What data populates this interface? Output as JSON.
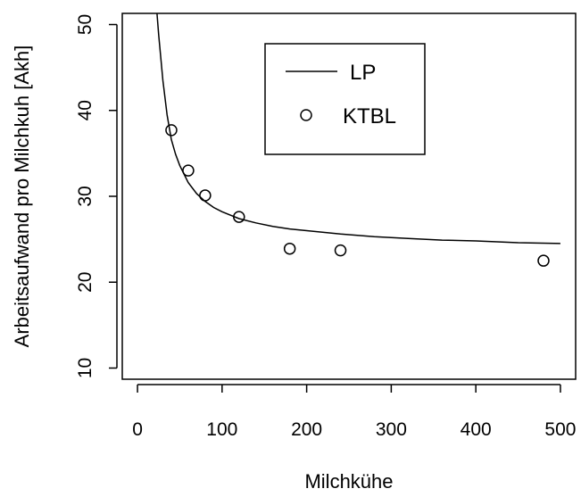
{
  "chart_data": {
    "type": "scatter",
    "xlabel": "Milchkühe",
    "ylabel": "Arbeitsaufwand pro Milchkuh [Akh]",
    "xlim": [
      -18,
      518
    ],
    "ylim": [
      8.7,
      51.3
    ],
    "x_ticks": [
      0,
      100,
      200,
      300,
      400,
      500
    ],
    "y_ticks": [
      10,
      20,
      30,
      40,
      50
    ],
    "x_tick_labels": [
      "0",
      "100",
      "200",
      "300",
      "400",
      "500"
    ],
    "y_tick_labels": [
      "10",
      "20",
      "30",
      "40",
      "50"
    ],
    "grid": false,
    "legend": {
      "position": "top-center",
      "entries": [
        {
          "label": "LP",
          "symbol": "line"
        },
        {
          "label": "KTBL",
          "symbol": "open-circle"
        }
      ]
    },
    "series": [
      {
        "name": "LP",
        "style": "line",
        "color": "#000000",
        "x": [
          23,
          25,
          30,
          35,
          40,
          45,
          50,
          60,
          70,
          80,
          90,
          100,
          120,
          140,
          160,
          180,
          200,
          240,
          280,
          320,
          360,
          400,
          450,
          500
        ],
        "y": [
          51.3,
          48.8,
          43.5,
          39.5,
          36.6,
          34.9,
          33.6,
          31.6,
          30.3,
          29.4,
          28.7,
          28.2,
          27.4,
          26.9,
          26.5,
          26.2,
          26.0,
          25.6,
          25.3,
          25.1,
          24.9,
          24.8,
          24.6,
          24.5
        ]
      },
      {
        "name": "KTBL",
        "style": "open-circle",
        "color": "#000000",
        "x": [
          40,
          60,
          80,
          120,
          180,
          240,
          480
        ],
        "y": [
          37.7,
          33.0,
          30.1,
          27.6,
          23.9,
          23.7,
          22.5
        ]
      }
    ]
  }
}
